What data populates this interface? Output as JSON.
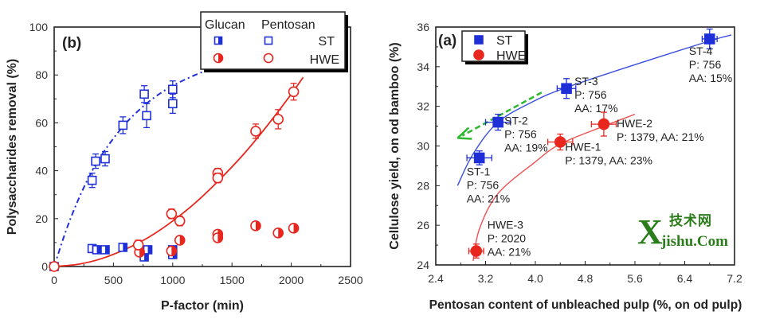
{
  "chart_data": [
    {
      "type": "scatter",
      "panel_label": "(b)",
      "xlabel": "P-factor (min)",
      "ylabel": "Polysaccharides removal (%)",
      "xlim": [
        0,
        2500
      ],
      "ylim": [
        0,
        100
      ],
      "xticks": [
        0,
        500,
        1000,
        1500,
        2000,
        2500
      ],
      "yticks": [
        0,
        20,
        40,
        60,
        80,
        100
      ],
      "grid": false,
      "legend": {
        "placement": "top-right",
        "col_headers": [
          "Glucan",
          "Pentosan"
        ],
        "row_labels": [
          "ST",
          "HWE"
        ]
      },
      "colors": {
        "ST": "#1f2fd8",
        "HWE": "#e8261e"
      },
      "series": [
        {
          "name": "ST Glucan",
          "marker": "half-filled-square",
          "x": [
            320,
            360,
            430,
            580,
            760,
            790,
            1000,
            1000
          ],
          "y": [
            7.5,
            7,
            7,
            8,
            4,
            7,
            5,
            7
          ]
        },
        {
          "name": "ST Pentosan",
          "marker": "open-square",
          "x": [
            0,
            320,
            350,
            430,
            580,
            760,
            780,
            1000,
            1000
          ],
          "y": [
            0,
            36,
            44,
            45,
            59,
            72,
            63,
            74,
            68
          ],
          "err": [
            0,
            3,
            3,
            3,
            3.5,
            3.5,
            5,
            3.5,
            4
          ]
        },
        {
          "name": "HWE Glucan",
          "marker": "half-filled-circle",
          "x": [
            720,
            990,
            1060,
            1380,
            1380,
            1700,
            1890,
            2020
          ],
          "y": [
            6,
            6.5,
            11,
            13.5,
            12,
            17,
            14,
            16
          ]
        },
        {
          "name": "HWE Pentosan",
          "marker": "open-circle",
          "x": [
            0,
            710,
            990,
            1060,
            1380,
            1380,
            1700,
            1890,
            2020
          ],
          "y": [
            0,
            9,
            22,
            19,
            39,
            37,
            56.5,
            61.5,
            73
          ],
          "err": [
            0,
            2,
            2,
            2,
            2,
            2,
            3,
            4,
            3.5
          ]
        }
      ],
      "fits": [
        {
          "series": "ST Pentosan",
          "style": "dash-dot",
          "x": [
            0,
            100,
            200,
            300,
            400,
            500,
            600,
            700,
            800,
            900,
            1000,
            1100,
            1200,
            1250
          ],
          "y": [
            0,
            15,
            27.5,
            38,
            46.5,
            53.5,
            59.6,
            64.6,
            68.9,
            72.5,
            75.5,
            78,
            80.2,
            81.2
          ]
        },
        {
          "series": "HWE Pentosan",
          "style": "solid",
          "x": [
            0,
            200,
            400,
            600,
            800,
            1000,
            1200,
            1400,
            1600,
            1800,
            2000,
            2100
          ],
          "y": [
            0,
            0.9,
            3.3,
            7.2,
            12.3,
            19,
            27,
            36.5,
            47,
            59,
            72,
            79
          ]
        }
      ]
    },
    {
      "type": "scatter",
      "panel_label": "(a)",
      "xlabel": "Pentosan content of unbleached pulp (%, on od pulp)",
      "ylabel": "Cellulose yield, on od bamboo (%)",
      "xlim": [
        2.4,
        7.2
      ],
      "ylim": [
        24,
        36
      ],
      "xticks": [
        "2.4",
        "3.2",
        "4.0",
        "4.8",
        "5.6",
        "6.4",
        "7.2"
      ],
      "yticks": [
        "24",
        "26",
        "28",
        "30",
        "32",
        "34",
        "36"
      ],
      "grid": false,
      "legend": {
        "placement": "top-left",
        "entries": [
          "ST",
          "HWE"
        ]
      },
      "colors": {
        "ST": "#1f2fd8",
        "HWE": "#e8261e",
        "arrow": "#2eb82e"
      },
      "series": [
        {
          "name": "ST",
          "marker": "filled-square",
          "points": [
            {
              "x": 3.1,
              "y": 29.4,
              "xerr": 0.2,
              "yerr": 0.35,
              "label": [
                "ST-1",
                "P: 756",
                "AA: 21%"
              ]
            },
            {
              "x": 3.4,
              "y": 31.2,
              "xerr": 0.2,
              "yerr": 0.4,
              "label": [
                "ST-2",
                "P: 756",
                "AA: 19%"
              ]
            },
            {
              "x": 4.5,
              "y": 32.9,
              "xerr": 0.15,
              "yerr": 0.5,
              "label": [
                "ST-3",
                "P: 756",
                "AA: 17%"
              ]
            },
            {
              "x": 6.8,
              "y": 35.4,
              "xerr": 0.12,
              "yerr": 0.5,
              "label": [
                "ST-4",
                "P: 756",
                "AA: 15%"
              ]
            }
          ]
        },
        {
          "name": "HWE",
          "marker": "filled-circle",
          "points": [
            {
              "x": 3.05,
              "y": 24.7,
              "xerr": 0.12,
              "yerr": 0.35,
              "label": [
                "HWE-3",
                "P: 2020",
                "AA: 21%"
              ]
            },
            {
              "x": 4.4,
              "y": 30.2,
              "xerr": 0.2,
              "yerr": 0.4,
              "label": [
                "HWE-1",
                "P: 1379, AA: 23%"
              ]
            },
            {
              "x": 5.1,
              "y": 31.1,
              "xerr": 0.2,
              "yerr": 0.6,
              "label": [
                "HWE-2",
                "P: 1379, AA: 21%"
              ]
            }
          ]
        }
      ],
      "fits": [
        {
          "series": "ST",
          "x": [
            2.75,
            3.0,
            3.4,
            4.0,
            4.5,
            5.5,
            6.8,
            7.15
          ],
          "y": [
            28,
            29.6,
            31.2,
            32.3,
            32.95,
            34.0,
            35.3,
            35.6
          ]
        },
        {
          "series": "HWE",
          "x": [
            3.0,
            3.1,
            3.4,
            4.0,
            4.4,
            5.1,
            5.6
          ],
          "y": [
            24.2,
            25.8,
            27.6,
            29.2,
            30.1,
            31.0,
            31.6
          ]
        }
      ],
      "arrow": {
        "from": [
          4.1,
          32.7
        ],
        "to": [
          2.75,
          30.4
        ],
        "style": "dashed"
      }
    }
  ],
  "watermark": {
    "big": "X",
    "text": "jishu.Com",
    "cn": "技术网"
  }
}
